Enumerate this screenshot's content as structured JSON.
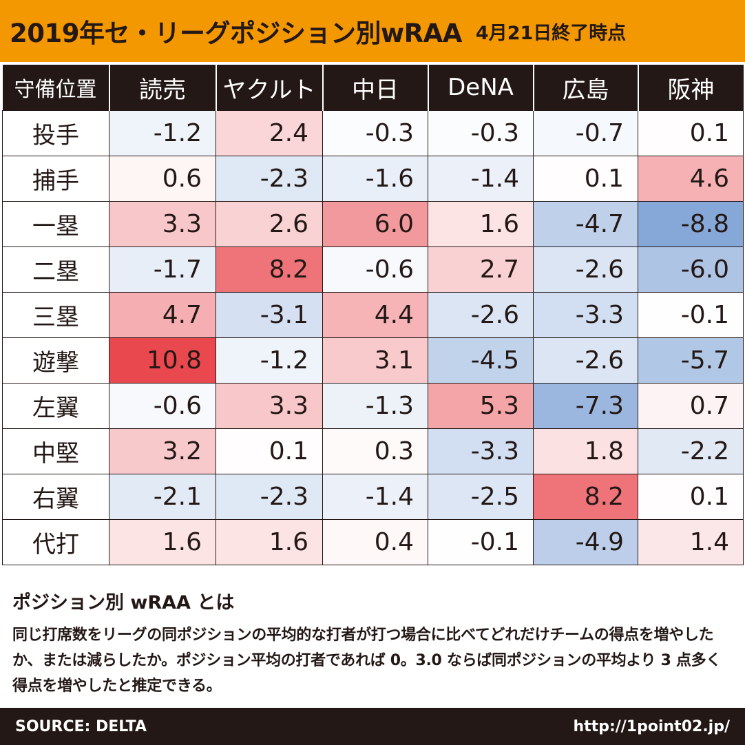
{
  "title": {
    "main": "2019年セ・リーグポジション別wRAA",
    "sub": "4月21日終了時点"
  },
  "colors": {
    "header_bg": "#f39800",
    "table_header_bg": "#231815",
    "positive_max": "#e8484e",
    "negative_max": "#6b94d0",
    "neutral": "#ffffff"
  },
  "chart_data": {
    "type": "heatmap",
    "title": "2019年セ・リーグポジション別wRAA",
    "subtitle": "4月21日終了時点",
    "row_header_label": "守備位置",
    "columns": [
      "読売",
      "ヤクルト",
      "中日",
      "DeNA",
      "広島",
      "阪神"
    ],
    "rows": [
      "投手",
      "捕手",
      "一塁",
      "二塁",
      "三塁",
      "遊撃",
      "左翼",
      "中堅",
      "右翼",
      "代打"
    ],
    "values": [
      [
        -1.2,
        2.4,
        -0.3,
        -0.3,
        -0.7,
        0.1
      ],
      [
        0.6,
        -2.3,
        -1.6,
        -1.4,
        0.1,
        4.6
      ],
      [
        3.3,
        2.6,
        6.0,
        1.6,
        -4.7,
        -8.8
      ],
      [
        -1.7,
        8.2,
        -0.6,
        2.7,
        -2.6,
        -6.0
      ],
      [
        4.7,
        -3.1,
        4.4,
        -2.6,
        -3.3,
        -0.1
      ],
      [
        10.8,
        -1.2,
        3.1,
        -4.5,
        -2.6,
        -5.7
      ],
      [
        -0.6,
        3.3,
        -1.3,
        5.3,
        -7.3,
        0.7
      ],
      [
        3.2,
        0.1,
        0.3,
        -3.3,
        1.8,
        -2.2
      ],
      [
        -2.1,
        -2.3,
        -1.4,
        -2.5,
        8.2,
        0.1
      ],
      [
        1.6,
        1.6,
        0.4,
        -0.1,
        -4.9,
        1.4
      ]
    ],
    "color_range": [
      -10.8,
      10.8
    ]
  },
  "description": {
    "heading": "ポジション別 wRAA とは",
    "body": "同じ打席数をリーグの同ポジションの平均的な打者が打つ場合に比べてどれだけチームの得点を増やしたか、または減らしたか。ポジション平均の打者であれば 0。3.0 ならば同ポジションの平均より 3 点多く得点を増やしたと推定できる。"
  },
  "footer": {
    "source": "SOURCE: DELTA",
    "url": "http://1point02.jp/"
  }
}
